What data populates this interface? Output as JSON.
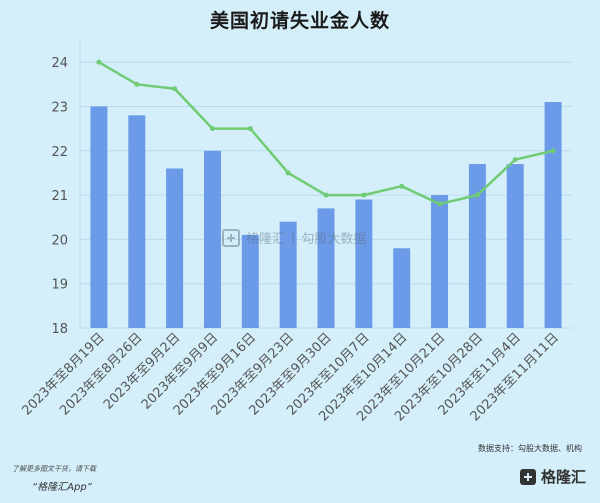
{
  "title": "美国初请失业金人数",
  "source": "数据支持：勾股大数据、机构",
  "footer": {
    "note": "了解更多图文干货，请下载",
    "app": "“格隆汇App”"
  },
  "logo_text": "格隆汇",
  "watermark": {
    "left_text": "格隆汇",
    "right_text": "勾股大数据"
  },
  "colors": {
    "bar": "#6b9be8",
    "line": "#6fcb74",
    "background": "#d4effa"
  },
  "chart_data": {
    "type": "bar",
    "title": "美国初请失业金人数",
    "categories": [
      "2023年至8月19日",
      "2023年至8月26日",
      "2023年至9月2日",
      "2023年至9月9日",
      "2023年至9月16日",
      "2023年至9月23日",
      "2023年至9月30日",
      "2023年至10月7日",
      "2023年至10月14日",
      "2023年至10月21日",
      "2023年至10月28日",
      "2023年至11月4日",
      "2023年至11月11日"
    ],
    "series": [
      {
        "type": "bar",
        "values": [
          23.0,
          22.8,
          21.6,
          22.0,
          20.1,
          20.4,
          20.7,
          20.9,
          19.8,
          21.0,
          21.7,
          21.7,
          23.1
        ]
      },
      {
        "type": "line",
        "values": [
          24.0,
          23.5,
          23.4,
          22.5,
          22.5,
          21.5,
          21.0,
          21.0,
          21.2,
          20.8,
          21.0,
          21.8,
          22.0
        ]
      }
    ],
    "yticks": [
      18,
      19,
      20,
      21,
      22,
      23,
      24
    ],
    "ylim": [
      18,
      24.5
    ],
    "grid": true
  }
}
